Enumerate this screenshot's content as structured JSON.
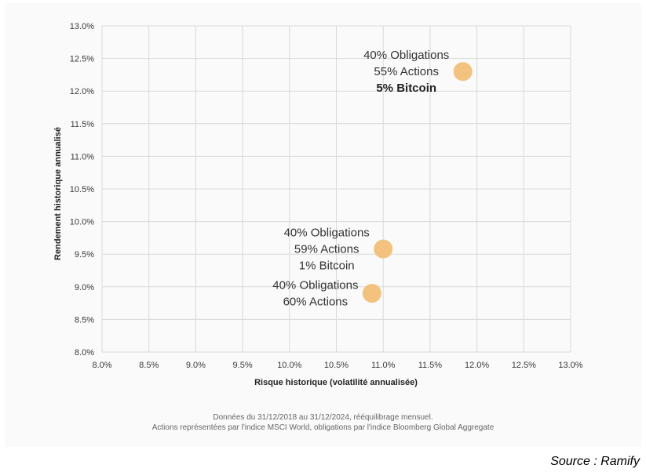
{
  "chart_data": {
    "type": "scatter",
    "xlabel": "Risque historique (volatilité annualisée)",
    "ylabel": "Rendement historique annualisé",
    "xlim": [
      8.0,
      13.0
    ],
    "ylim": [
      8.0,
      13.0
    ],
    "x_ticks": [
      "8.0%",
      "8.5%",
      "9.0%",
      "9.5%",
      "10.0%",
      "10.5%",
      "11.0%",
      "11.5%",
      "12.0%",
      "12.5%",
      "13.0%"
    ],
    "y_ticks": [
      "13.0%",
      "12.5%",
      "12.0%",
      "11.5%",
      "11.0%",
      "10.5%",
      "10.0%",
      "9.5%",
      "9.0%",
      "8.5%",
      "8.0%"
    ],
    "grid": true,
    "point_color": "#f2c27e",
    "points": [
      {
        "x": 11.85,
        "y": 12.3,
        "label_lines": [
          "40% Obligations",
          "55% Actions",
          "5% Bitcoin"
        ],
        "bold_line": 2
      },
      {
        "x": 11.0,
        "y": 9.58,
        "label_lines": [
          "40% Obligations",
          "59% Actions",
          "1% Bitcoin"
        ],
        "bold_line": -1
      },
      {
        "x": 10.88,
        "y": 8.9,
        "label_lines": [
          "40% Obligations",
          "60% Actions"
        ],
        "bold_line": -1
      }
    ]
  },
  "footnote": {
    "line1": "Données du 31/12/2018 au 31/12/2024, rééquilibrage mensuel.",
    "line2": "Actions représentées par l'indice MSCI World, obligations par l'indice Bloomberg Global Aggregate"
  },
  "source": "Source : Ramify"
}
